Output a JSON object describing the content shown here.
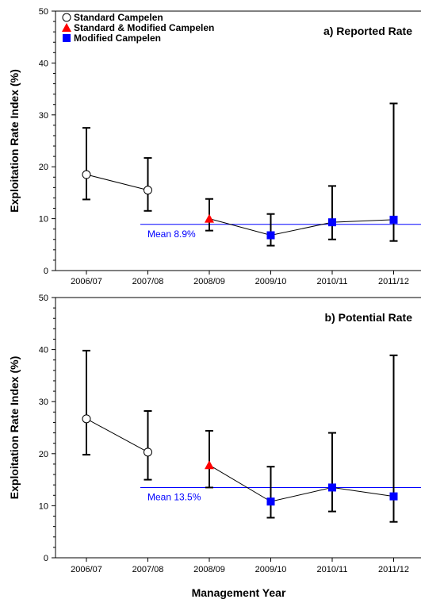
{
  "xlabel": "Management Year",
  "legend": [
    {
      "label": "Standard Campelen",
      "marker": "open-circle",
      "color": "#ffffff"
    },
    {
      "label": "Standard & Modified Campelen",
      "marker": "triangle",
      "color": "#ff0000"
    },
    {
      "label": "Modified Campelen",
      "marker": "square",
      "color": "#0000ff"
    }
  ],
  "colors": {
    "mean_line": "#0000ff",
    "line": "#000000"
  },
  "chart_data": [
    {
      "type": "line",
      "title": "a) Reported Rate",
      "ylabel": "Exploitation Rate Index (%)",
      "ylim": [
        0,
        50
      ],
      "yticks": [
        0,
        10,
        20,
        30,
        40,
        50
      ],
      "categories": [
        "2006/07",
        "2007/08",
        "2008/09",
        "2009/10",
        "2010/11",
        "2011/12"
      ],
      "values": [
        18.5,
        15.5,
        10.0,
        6.8,
        9.3,
        9.8
      ],
      "lower": [
        13.7,
        11.5,
        7.7,
        4.8,
        6.0,
        5.7
      ],
      "upper": [
        27.5,
        21.7,
        13.8,
        10.9,
        16.3,
        32.2
      ],
      "markers": [
        "open-circle",
        "open-circle",
        "triangle",
        "square",
        "square",
        "square"
      ],
      "mean": {
        "value": 8.9,
        "label": "Mean 8.9%",
        "start_category": 2
      }
    },
    {
      "type": "line",
      "title": "b) Potential Rate",
      "ylabel": "Exploitation Rate Index (%)",
      "ylim": [
        0,
        50
      ],
      "yticks": [
        0,
        10,
        20,
        30,
        40,
        50
      ],
      "categories": [
        "2006/07",
        "2007/08",
        "2008/09",
        "2009/10",
        "2010/11",
        "2011/12"
      ],
      "values": [
        26.7,
        20.3,
        17.8,
        10.8,
        13.5,
        11.8
      ],
      "lower": [
        19.8,
        15.0,
        13.5,
        7.7,
        8.9,
        6.9
      ],
      "upper": [
        39.8,
        28.2,
        24.4,
        17.5,
        24.0,
        38.9
      ],
      "markers": [
        "open-circle",
        "open-circle",
        "triangle",
        "square",
        "square",
        "square"
      ],
      "mean": {
        "value": 13.5,
        "label": "Mean 13.5%",
        "start_category": 2
      }
    }
  ]
}
